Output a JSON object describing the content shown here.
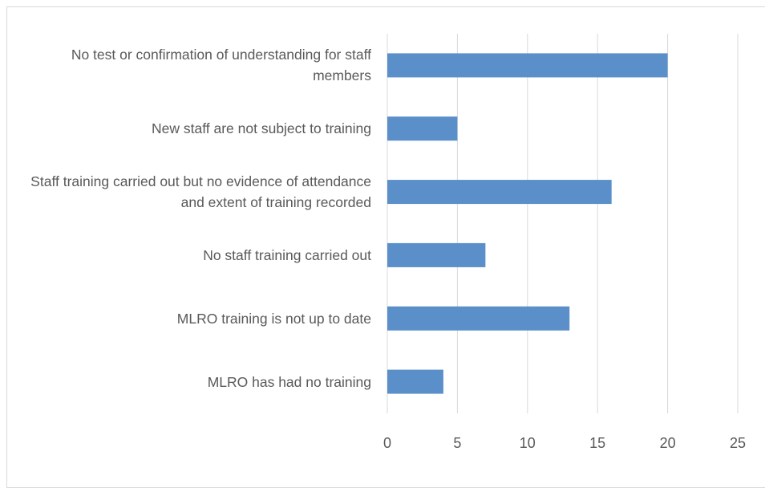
{
  "chart_data": {
    "type": "barh",
    "categories": [
      "No test or confirmation of understanding for staff members",
      "New staff are not subject to training",
      "Staff training carried out but no evidence of attendance and extent of training recorded",
      "No staff training carried out",
      "MLRO training is not up to date",
      "MLRO has had no training"
    ],
    "values": [
      20,
      5,
      16,
      7,
      13,
      4
    ],
    "color": "#5b8fc9",
    "xlim": [
      0,
      25
    ],
    "xticks": [
      0,
      5,
      10,
      15,
      20,
      25
    ],
    "grid": true
  }
}
